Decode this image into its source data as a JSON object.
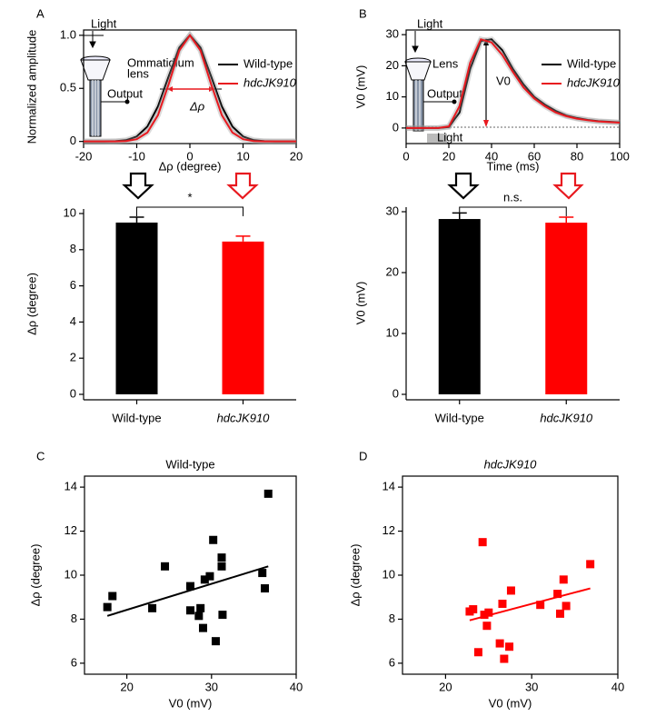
{
  "chart_data": [
    {
      "type": "line",
      "panel": "A",
      "y_label": "Normalized amplitude",
      "x_label": "Δρ (degree)",
      "x": [
        -20,
        -18,
        -16,
        -14,
        -12,
        -10,
        -8,
        -6,
        -4,
        -2,
        0,
        2,
        4,
        6,
        8,
        10,
        12,
        14,
        16,
        18,
        20
      ],
      "series": [
        {
          "name": "Wild-type",
          "color": "#000000",
          "values": [
            0,
            0,
            0,
            0.002,
            0.012,
            0.046,
            0.14,
            0.33,
            0.611,
            0.884,
            1,
            0.884,
            0.611,
            0.33,
            0.14,
            0.046,
            0.012,
            0.002,
            0,
            0,
            0
          ]
        },
        {
          "name": "hdcJK910",
          "color": "#e8191f",
          "values": [
            0,
            0,
            0,
            0,
            0.004,
            0.021,
            0.084,
            0.248,
            0.538,
            0.856,
            1,
            0.856,
            0.538,
            0.248,
            0.084,
            0.021,
            0.004,
            0,
            0,
            0,
            0
          ]
        }
      ],
      "xlim": [
        -20,
        20
      ],
      "xticks": [
        -20,
        -10,
        0,
        10,
        20
      ],
      "ylim": [
        -0.02,
        1.05
      ],
      "yticks": [
        0,
        0.5,
        {
          "value": 1,
          "label": "1.0"
        }
      ],
      "legend": "upper right",
      "annotations": [
        "Light",
        "Ommatidium",
        "lens",
        "Output",
        "Δρ"
      ]
    },
    {
      "type": "bar",
      "y_label": "Δρ (degree)",
      "categories": [
        "Wild-type",
        "hdcJK910"
      ],
      "values": [
        9.5,
        8.45
      ],
      "errors": [
        0.3,
        0.3
      ],
      "colors": [
        "#000000",
        "#ff0000"
      ],
      "ylim": [
        0,
        10
      ],
      "yticks": [
        0,
        2,
        4,
        6,
        8,
        10
      ],
      "significance": "*"
    },
    {
      "type": "line",
      "panel": "B",
      "y_label": "V0 (mV)",
      "x_label": "Time (ms)",
      "x": [
        0,
        5,
        10,
        15,
        20,
        25,
        30,
        35,
        40,
        45,
        50,
        55,
        60,
        65,
        70,
        75,
        80,
        85,
        90,
        95,
        100
      ],
      "series": [
        {
          "name": "Wild-type",
          "color": "#000000",
          "values": [
            0,
            0,
            0,
            0,
            0.3,
            5,
            19,
            28,
            28.5,
            25,
            19,
            14,
            10,
            7.5,
            5.5,
            4,
            3.2,
            2.6,
            2.2,
            2,
            1.8
          ]
        },
        {
          "name": "hdcJK910",
          "color": "#e8191f",
          "values": [
            0,
            0,
            0,
            0,
            0.5,
            7,
            21,
            28.5,
            27.5,
            23.5,
            18,
            13,
            9.5,
            7,
            5,
            3.8,
            3,
            2.5,
            2.1,
            1.9,
            1.7
          ]
        }
      ],
      "xlim": [
        0,
        100
      ],
      "xticks": [
        0,
        20,
        40,
        60,
        80,
        100
      ],
      "ylim": [
        -5,
        31.5
      ],
      "yticks": [
        0,
        10,
        20,
        30
      ],
      "legend": "upper right",
      "annotations": [
        "Light",
        "Lens",
        "Output",
        "V0",
        "Light"
      ]
    },
    {
      "type": "bar",
      "y_label": "V0 (mV)",
      "categories": [
        "Wild-type",
        "hdcJK910"
      ],
      "values": [
        28.8,
        28.2
      ],
      "errors": [
        1,
        0.9
      ],
      "colors": [
        "#000000",
        "#ff0000"
      ],
      "ylim": [
        0,
        30
      ],
      "yticks": [
        0,
        10,
        20,
        30
      ],
      "significance": "n.s."
    },
    {
      "type": "scatter",
      "panel": "C",
      "title": "Wild-type",
      "y_label": "Δρ (degree)",
      "x_label": "V0 (mV)",
      "series": [
        {
          "color": "#000000",
          "x": [
            17.7,
            18.3,
            23,
            24.5,
            27.5,
            27.5,
            28.5,
            28.7,
            29,
            29.2,
            29.8,
            30.2,
            30.5,
            31.2,
            31.2,
            31.3,
            36,
            36.3,
            36.7
          ],
          "values": [
            8.55,
            9.05,
            8.5,
            10.4,
            9.5,
            8.4,
            8.15,
            8.5,
            7.6,
            9.8,
            9.95,
            11.6,
            7.0,
            10.8,
            10.4,
            8.2,
            10.1,
            9.4,
            13.7
          ]
        }
      ],
      "fit": {
        "x": [
          17.7,
          36.7
        ],
        "values": [
          8.15,
          10.4
        ]
      },
      "xlim": [
        15,
        40
      ],
      "xticks": [
        20,
        30,
        40
      ],
      "ylim": [
        5.5,
        14.5
      ],
      "yticks": [
        6,
        8,
        10,
        12,
        14
      ]
    },
    {
      "type": "scatter",
      "panel": "D",
      "title": "hdcJK910",
      "y_label": "Δρ (degree)",
      "x_label": "V0 (mV)",
      "series": [
        {
          "color": "#ff0000",
          "x": [
            22.8,
            23.2,
            23.8,
            24.3,
            24.5,
            24.8,
            25,
            26.3,
            26.6,
            26.8,
            27.4,
            27.6,
            31,
            33,
            33.3,
            33.7,
            34,
            36.8
          ],
          "values": [
            8.35,
            8.45,
            6.5,
            11.5,
            8.2,
            7.7,
            8.3,
            6.9,
            8.7,
            6.2,
            6.75,
            9.3,
            8.65,
            9.15,
            8.25,
            9.8,
            8.6,
            10.5
          ]
        }
      ],
      "fit": {
        "x": [
          22.8,
          36.8
        ],
        "values": [
          7.95,
          9.4
        ]
      },
      "xlim": [
        15,
        40
      ],
      "xticks": [
        20,
        30,
        40
      ],
      "ylim": [
        5.5,
        14.5
      ],
      "yticks": [
        6,
        8,
        10,
        12,
        14
      ]
    }
  ]
}
